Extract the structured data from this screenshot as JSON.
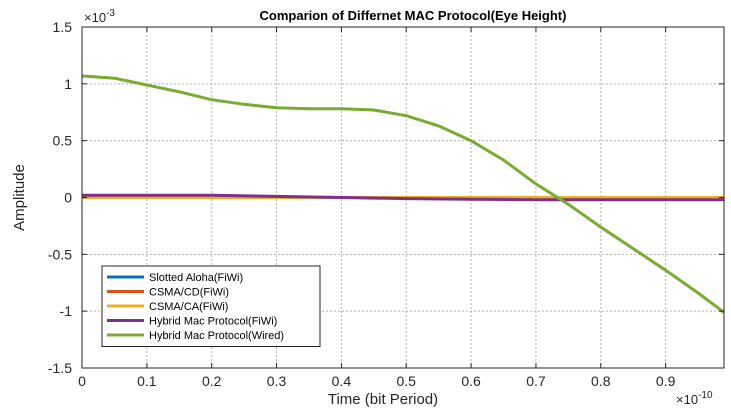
{
  "chart_data": {
    "type": "line",
    "title": "Comparion of Differnet MAC Protocol(Eye Height)",
    "xlabel": "Time (bit Period)",
    "ylabel": "Amplitude",
    "x_exponent_label": "×10",
    "x_exponent_power": "-10",
    "y_exponent_label": "×10",
    "y_exponent_power": "-3",
    "xlim": [
      0,
      0.99
    ],
    "ylim": [
      -1.5,
      1.5
    ],
    "x_ticks": [
      0,
      0.1,
      0.2,
      0.3,
      0.4,
      0.5,
      0.6,
      0.7,
      0.8,
      0.9
    ],
    "x_tick_labels": [
      "0",
      "0.1",
      "0.2",
      "0.3",
      "0.4",
      "0.5",
      "0.6",
      "0.7",
      "0.8",
      "0.9"
    ],
    "y_ticks": [
      -1.5,
      -1,
      -0.5,
      0,
      0.5,
      1,
      1.5
    ],
    "y_tick_labels": [
      "-1.5",
      "-1",
      "-0.5",
      "0",
      "0.5",
      "1",
      "1.5"
    ],
    "grid": true,
    "legend_position": "bottom-left",
    "series": [
      {
        "name": "Slotted Aloha(FiWi)",
        "color": "#0072BD",
        "x": [
          0,
          0.99
        ],
        "y": [
          0,
          0
        ]
      },
      {
        "name": "CSMA/CD(FiWi)",
        "color": "#D95319",
        "x": [
          0,
          0.99
        ],
        "y": [
          0,
          0
        ]
      },
      {
        "name": "CSMA/CA(FiWi)",
        "color": "#EDB120",
        "x": [
          0,
          0.99
        ],
        "y": [
          0,
          0
        ]
      },
      {
        "name": "Hybrid Mac Protocol(FiWi)",
        "color": "#7E2F8E",
        "x": [
          0,
          0.1,
          0.2,
          0.3,
          0.4,
          0.5,
          0.6,
          0.7,
          0.8,
          0.9,
          0.99
        ],
        "y": [
          0.02,
          0.02,
          0.02,
          0.01,
          0.0,
          -0.01,
          -0.015,
          -0.02,
          -0.02,
          -0.02,
          -0.02
        ]
      },
      {
        "name": "Hybrid Mac Protocol(Wired)",
        "color": "#77AC30",
        "x": [
          0,
          0.05,
          0.1,
          0.15,
          0.2,
          0.25,
          0.3,
          0.35,
          0.4,
          0.45,
          0.5,
          0.55,
          0.6,
          0.65,
          0.7,
          0.75,
          0.8,
          0.85,
          0.9,
          0.95,
          0.99
        ],
        "y": [
          1.07,
          1.05,
          0.99,
          0.93,
          0.86,
          0.82,
          0.79,
          0.78,
          0.78,
          0.77,
          0.72,
          0.63,
          0.5,
          0.33,
          0.12,
          -0.06,
          -0.26,
          -0.45,
          -0.64,
          -0.84,
          -1.01
        ]
      }
    ]
  }
}
